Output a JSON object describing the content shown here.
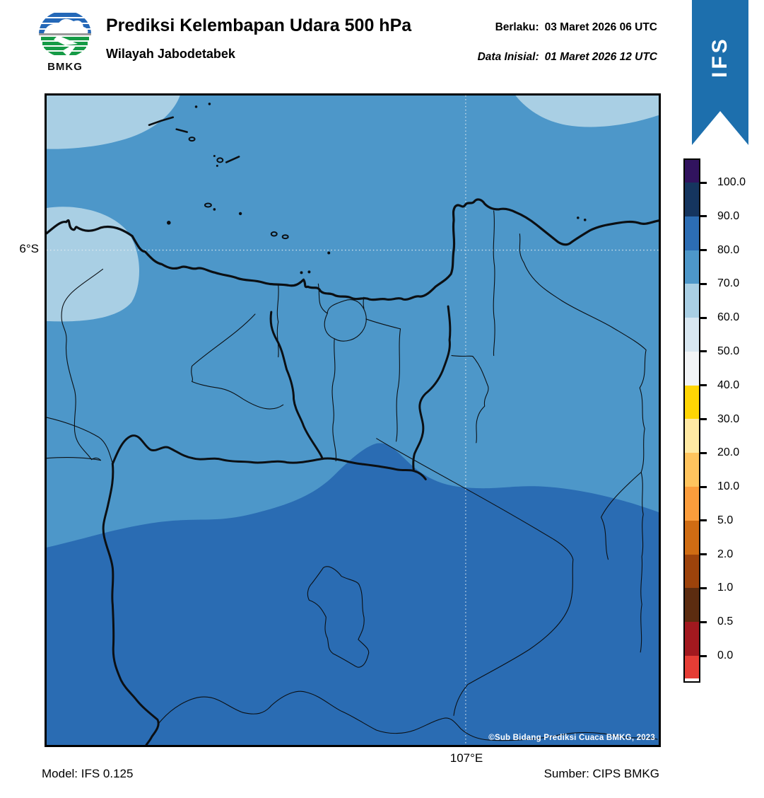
{
  "header": {
    "title": "Prediksi Kelembapan Udara 500 hPa",
    "subtitle": "Wilayah Jabodetabek",
    "valid_label": "Berlaku:",
    "valid_value": "03 Maret 2026 06 UTC",
    "init_label": "Data Inisial:",
    "init_value": "01 Maret 2026 12 UTC",
    "logo_text": "BMKG"
  },
  "ribbon": {
    "label": "IFS",
    "color": "#1d6fad"
  },
  "map": {
    "lat_label": "6°S",
    "lon_label": "107°E",
    "copyright": "©Sub Bidang Prediksi Cuaca BMKG, 2023",
    "band_colors": {
      "rh60_70": "#a9cfe4",
      "rh70_80": "#4d97c9",
      "rh80_90": "#2a6cb3"
    },
    "gridline_color": "#e8eef2",
    "boundary_color": "#0b0f13"
  },
  "colorbar": {
    "labels": [
      "100.0",
      "90.0",
      "80.0",
      "70.0",
      "60.0",
      "50.0",
      "40.0",
      "30.0",
      "20.0",
      "10.0",
      "5.0",
      "2.0",
      "1.0",
      "0.5",
      "0.0"
    ],
    "colors": [
      "#31135e",
      "#15355f",
      "#2c6db4",
      "#4d97c9",
      "#a9cfe4",
      "#d8e7f1",
      "#f2f4f6",
      "#ffd504",
      "#ffe9a3",
      "#ffc45e",
      "#fb9d3c",
      "#cf6c13",
      "#9d430b",
      "#5c2c10",
      "#a2191f",
      "#e53d35"
    ]
  },
  "footer": {
    "model": "Model: IFS 0.125",
    "source": "Sumber: CIPS BMKG"
  }
}
